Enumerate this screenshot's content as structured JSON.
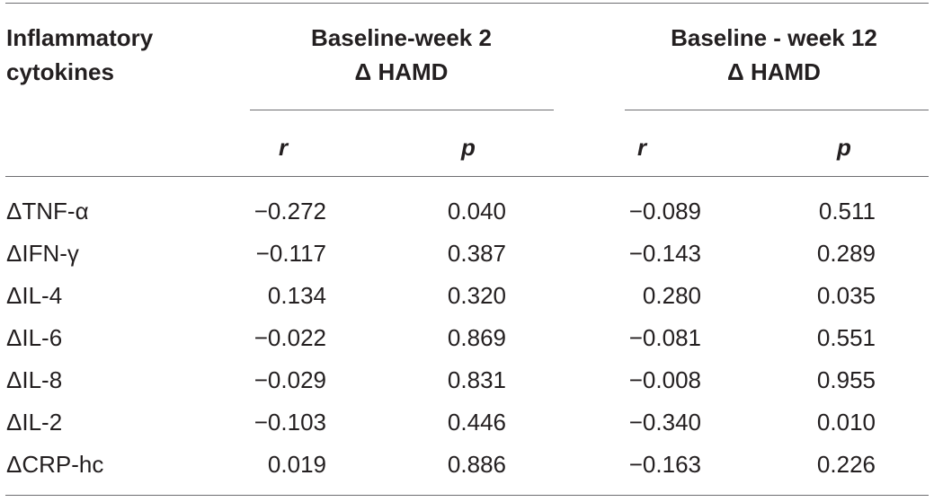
{
  "table": {
    "header": {
      "col1_line1": "Inflammatory",
      "col1_line2": "cytokines",
      "group1_line1": "Baseline-week 2",
      "group1_line2": "Δ HAMD",
      "group2_line1": "Baseline - week 12",
      "group2_line2": "Δ HAMD"
    },
    "subheaders": [
      "r",
      "p",
      "r",
      "p"
    ],
    "rows": [
      {
        "label": "ΔTNF-α",
        "r2": "−0.272",
        "p2": "0.040",
        "r12": "−0.089",
        "p12": "0.511"
      },
      {
        "label": "ΔIFN-γ",
        "r2": "−0.117",
        "p2": "0.387",
        "r12": "−0.143",
        "p12": "0.289"
      },
      {
        "label": "ΔIL-4",
        "r2": "0.134",
        "p2": "0.320",
        "r12": "0.280",
        "p12": "0.035"
      },
      {
        "label": "ΔIL-6",
        "r2": "−0.022",
        "p2": "0.869",
        "r12": "−0.081",
        "p12": "0.551"
      },
      {
        "label": "ΔIL-8",
        "r2": "−0.029",
        "p2": "0.831",
        "r12": "−0.008",
        "p12": "0.955"
      },
      {
        "label": "ΔIL-2",
        "r2": "−0.103",
        "p2": "0.446",
        "r12": "−0.340",
        "p12": "0.010"
      },
      {
        "label": "ΔCRP-hc",
        "r2": "0.019",
        "p2": "0.886",
        "r12": "−0.163",
        "p12": "0.226"
      }
    ]
  }
}
